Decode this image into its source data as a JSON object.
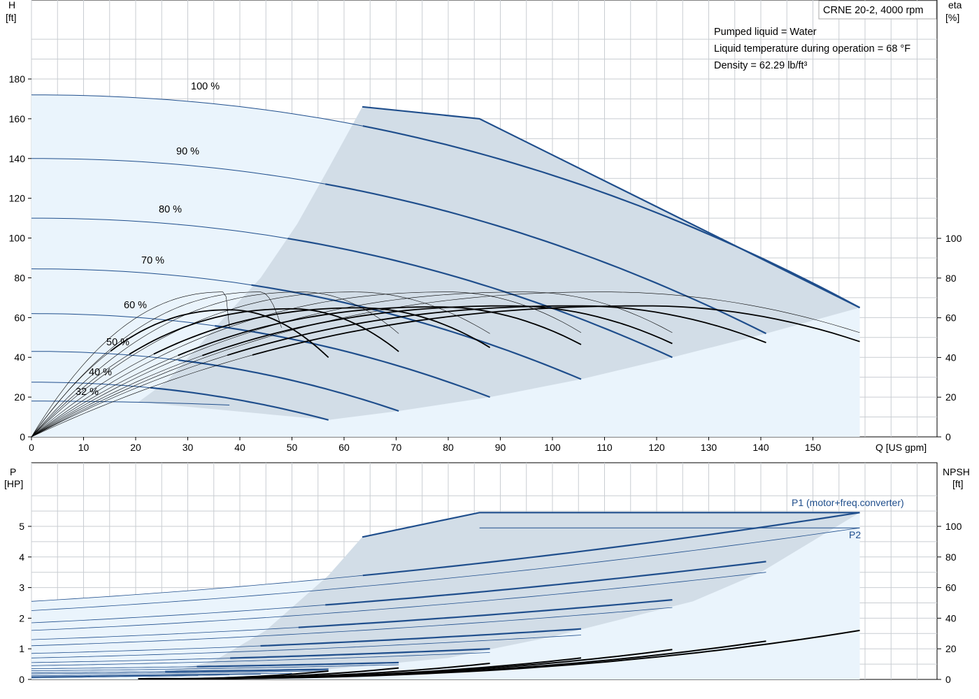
{
  "pump_model": "CRNE 20-2, 4000 rpm",
  "info_lines": [
    "Pumped liquid = Water",
    "Liquid temperature during operation = 68 °F",
    "Density = 62.29 lb/ft³"
  ],
  "colors": {
    "curve": "#1f4e8c",
    "region_light": "#eaf4fc",
    "region_dark": "#d2dde7",
    "efficiency": "#000000",
    "grid": "#c9cdd2"
  },
  "chart_data": [
    {
      "type": "line",
      "panel": "head-efficiency",
      "x_axis": {
        "label": "Q [US gpm]",
        "range": [
          0,
          175
        ],
        "ticks": [
          0,
          10,
          20,
          30,
          40,
          50,
          60,
          70,
          80,
          90,
          100,
          110,
          120,
          130,
          140,
          150
        ]
      },
      "y_axis_left": {
        "label_top": "H",
        "label_unit": "[ft]",
        "range": [
          0,
          200
        ],
        "ticks": [
          0,
          20,
          40,
          60,
          80,
          100,
          120,
          140,
          160,
          180
        ]
      },
      "y_axis_right": {
        "label_top": "eta",
        "label_unit": "[%]",
        "range": [
          0,
          118
        ],
        "ticks": [
          0,
          20,
          40,
          60,
          80,
          100
        ]
      },
      "grid": true,
      "speed_labels": [
        "100 %",
        "90 %",
        "80 %",
        "70 %",
        "60 %",
        "50 %",
        "40 %",
        "32 %"
      ],
      "head_curves": [
        {
          "speed": 100,
          "q_end": 159,
          "h_shutoff": 172,
          "h_end": 65
        },
        {
          "speed": 90,
          "q_end": 141,
          "h_shutoff": 140,
          "h_end": 52
        },
        {
          "speed": 80,
          "q_end": 123,
          "h_shutoff": 110,
          "h_end": 40
        },
        {
          "speed": 70,
          "q_end": 105.5,
          "h_shutoff": 84.5,
          "h_end": 29
        },
        {
          "speed": 60,
          "q_end": 88,
          "h_shutoff": 62,
          "h_end": 20
        },
        {
          "speed": 50,
          "q_end": 70.5,
          "h_shutoff": 43,
          "h_end": 13
        },
        {
          "speed": 40,
          "q_end": 57,
          "h_shutoff": 27.5,
          "h_end": 8.5
        },
        {
          "speed": 32,
          "q_end": 38,
          "h_shutoff": 18,
          "h_end": 16
        }
      ],
      "max_power_limit": [
        [
          63.5,
          166
        ],
        [
          86,
          160
        ],
        [
          159,
          65
        ]
      ],
      "operating_region_lower": [
        [
          20.5,
          17.5
        ],
        [
          57,
          8.5
        ],
        [
          70.5,
          13
        ],
        [
          88,
          20
        ],
        [
          105.5,
          29
        ],
        [
          123,
          40
        ],
        [
          141,
          52
        ],
        [
          159,
          65
        ]
      ],
      "operating_region_left": [
        [
          20.5,
          17.5
        ],
        [
          26,
          28
        ],
        [
          37,
          60
        ],
        [
          44,
          80
        ],
        [
          51,
          107
        ],
        [
          57,
          135
        ],
        [
          63.5,
          166
        ]
      ],
      "efficiency_curves": [
        {
          "q_end": 57,
          "peak": 64,
          "eta_end": 40,
          "q_peak": 38
        },
        {
          "q_end": 70.5,
          "peak": 64.5,
          "eta_end": 43,
          "q_peak": 50
        },
        {
          "q_end": 88,
          "peak": 65,
          "eta_end": 45,
          "q_peak": 63
        },
        {
          "q_end": 105.5,
          "peak": 65.5,
          "eta_end": 46.5,
          "q_peak": 78
        },
        {
          "q_end": 123,
          "peak": 66,
          "eta_end": 47,
          "q_peak": 92
        },
        {
          "q_end": 141,
          "peak": 66,
          "eta_end": 47.5,
          "q_peak": 105
        },
        {
          "q_end": 159,
          "peak": 66,
          "eta_end": 48,
          "q_peak": 118
        }
      ],
      "thin_efficiency_curves": [
        {
          "q_end": 38,
          "peak": 73,
          "q_peak": 37
        },
        {
          "q_end": 48,
          "peak": 73,
          "q_peak": 44
        },
        {
          "q_end": 70.5,
          "peak": 73,
          "q_peak": 52,
          "eta_end": 52
        },
        {
          "q_end": 88,
          "peak": 73,
          "q_peak": 62,
          "eta_end": 52
        },
        {
          "q_end": 105.5,
          "peak": 73,
          "q_peak": 80,
          "eta_end": 52.5
        },
        {
          "q_end": 123,
          "peak": 73,
          "q_peak": 95,
          "eta_end": 52.5
        },
        {
          "q_end": 159,
          "peak": 73,
          "q_peak": 110,
          "eta_end": 52.5
        }
      ]
    },
    {
      "type": "line",
      "panel": "power-npsh",
      "x_axis": {
        "range": [
          0,
          175
        ]
      },
      "y_axis_left": {
        "label_top": "P",
        "label_unit": "[HP]",
        "range": [
          0,
          6
        ],
        "ticks": [
          0,
          1,
          2,
          3,
          4,
          5
        ]
      },
      "y_axis_right": {
        "label_top": "NPSH",
        "label_unit": "[ft]",
        "range": [
          0,
          120
        ],
        "ticks": [
          0,
          20,
          40,
          60,
          80,
          100
        ]
      },
      "grid": true,
      "series_labels": [
        "P1 (motor+freq.converter)",
        "P2"
      ],
      "p1_curves": [
        {
          "q_end": 159,
          "p0": 2.55,
          "p_end": 5.45,
          "q_start_thick": 63.5
        },
        {
          "q_end": 141,
          "p0": 1.85,
          "p_end": 3.85,
          "q_start_thick": 57
        },
        {
          "q_end": 123,
          "p0": 1.3,
          "p_end": 2.6,
          "q_start_thick": 51
        },
        {
          "q_end": 105.5,
          "p0": 0.85,
          "p_end": 1.65,
          "q_start_thick": 44
        },
        {
          "q_end": 88,
          "p0": 0.55,
          "p_end": 1.0,
          "q_start_thick": 38
        },
        {
          "q_end": 70.5,
          "p0": 0.35,
          "p_end": 0.55,
          "q_start_thick": 32
        },
        {
          "q_end": 57,
          "p0": 0.22,
          "p_end": 0.33,
          "q_start_thick": 26
        }
      ],
      "p2_curves": [
        {
          "q_end": 159,
          "p0": 2.25,
          "p_end": 4.95
        },
        {
          "q_end": 141,
          "p0": 1.6,
          "p_end": 3.5
        },
        {
          "q_end": 123,
          "p0": 1.1,
          "p_end": 2.35
        },
        {
          "q_end": 105.5,
          "p0": 0.7,
          "p_end": 1.45
        },
        {
          "q_end": 88,
          "p0": 0.45,
          "p_end": 0.88
        },
        {
          "q_end": 70.5,
          "p0": 0.28,
          "p_end": 0.48
        },
        {
          "q_end": 57,
          "p0": 0.18,
          "p_end": 0.28
        }
      ],
      "max_power_line": [
        [
          63.5,
          4.65
        ],
        [
          86,
          5.45
        ],
        [
          159,
          5.45
        ]
      ],
      "max_p2_line": [
        [
          86,
          4.95
        ],
        [
          159,
          4.95
        ]
      ],
      "npsh_curves": [
        {
          "q_end": 159,
          "npsh_end": 32
        },
        {
          "q_end": 141,
          "npsh_end": 25
        },
        {
          "q_end": 123,
          "npsh_end": 19.5
        },
        {
          "q_end": 105.5,
          "npsh_end": 14
        },
        {
          "q_end": 88,
          "npsh_end": 10.5
        },
        {
          "q_end": 70.5,
          "npsh_end": 7.5
        },
        {
          "q_end": 57,
          "npsh_end": 5.5
        }
      ]
    }
  ]
}
